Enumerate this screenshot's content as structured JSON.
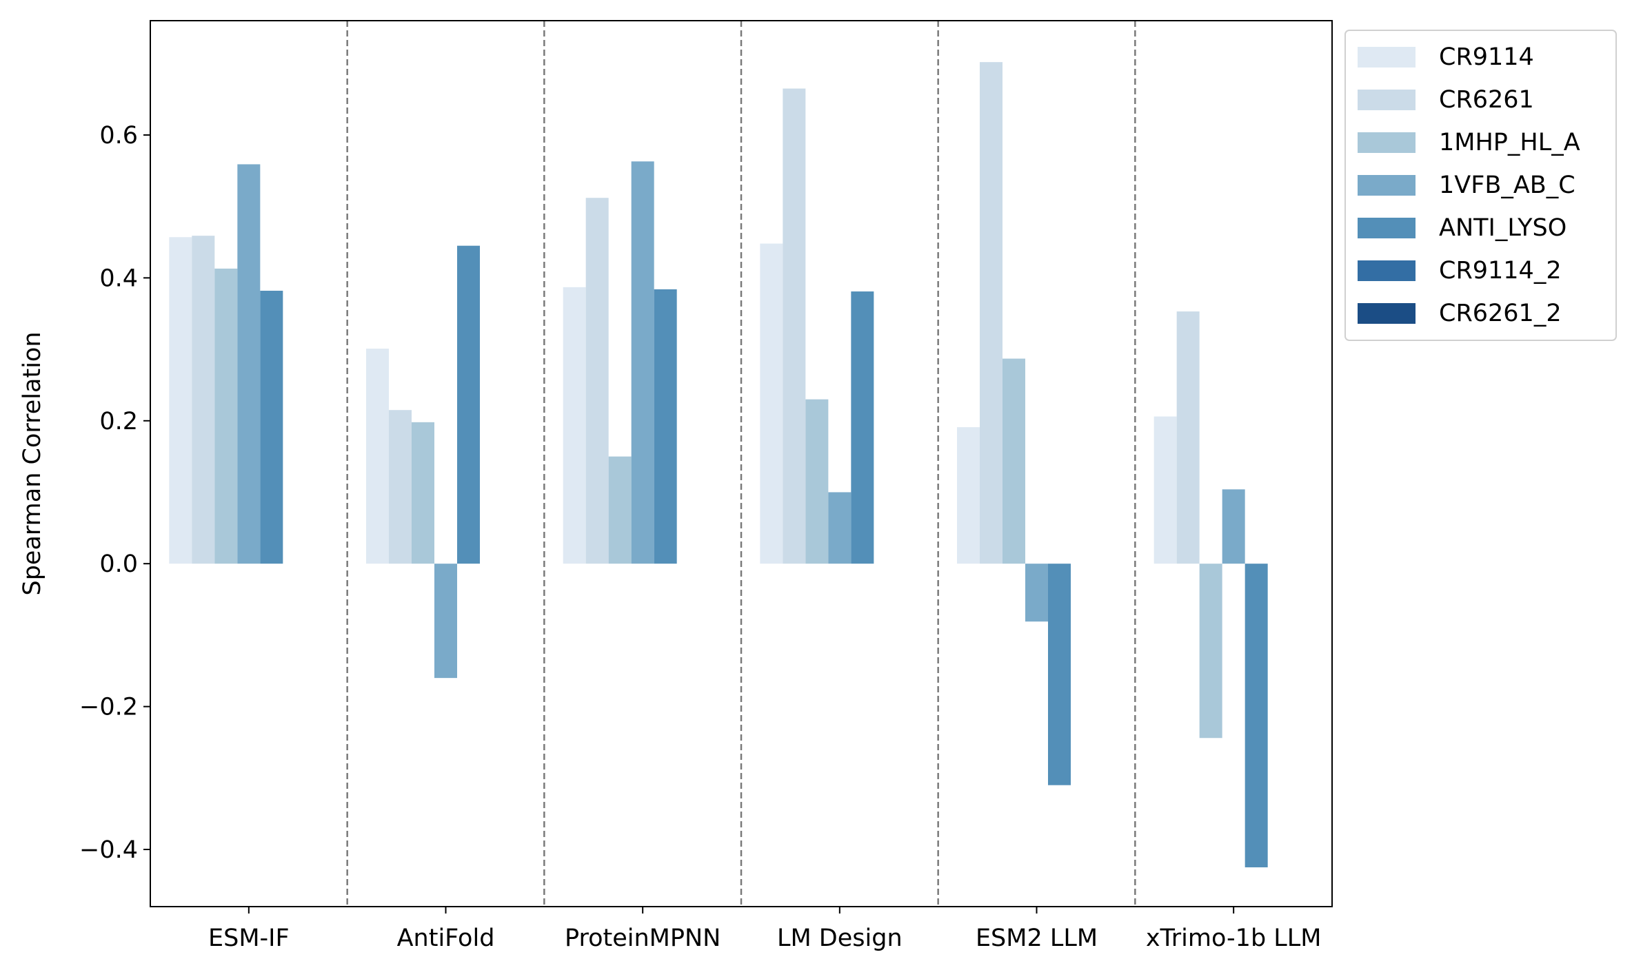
{
  "chart_data": {
    "type": "bar",
    "title": "",
    "xlabel": "",
    "ylabel": "Spearman Correlation",
    "ylim": [
      -0.48,
      0.76
    ],
    "yticks": [
      -0.4,
      -0.2,
      0.0,
      0.2,
      0.4,
      0.6
    ],
    "ytick_labels": [
      "−0.4",
      "−0.2",
      "0.0",
      "0.2",
      "0.4",
      "0.6"
    ],
    "grid": false,
    "group_separators": "dashed gray vertical lines between groups",
    "legend_position": "outside right, top",
    "categories": [
      "ESM-IF",
      "AntiFold",
      "ProteinMPNN",
      "LM Design",
      "ESM2 LLM",
      "xTrimo-1b LLM"
    ],
    "series": [
      {
        "name": "CR9114",
        "color": "#dfe9f3",
        "values": [
          0.457,
          0.301,
          0.387,
          0.448,
          0.191,
          0.206
        ]
      },
      {
        "name": "CR6261",
        "color": "#cbdbe8",
        "values": [
          0.459,
          0.215,
          0.512,
          0.665,
          0.702,
          0.353
        ]
      },
      {
        "name": "1MHP_HL_A",
        "color": "#a9c8d9",
        "values": [
          0.413,
          0.198,
          0.15,
          0.23,
          0.287,
          -0.244
        ]
      },
      {
        "name": "1VFB_AB_C",
        "color": "#7aaac9",
        "values": [
          0.559,
          -0.16,
          0.563,
          0.1,
          -0.081,
          0.104
        ]
      },
      {
        "name": "ANTI_LYSO",
        "color": "#538fb8",
        "values": [
          0.382,
          0.445,
          0.384,
          0.381,
          -0.31,
          -0.425
        ]
      },
      {
        "name": "CR9114_2",
        "color": "#336ea4",
        "values": [
          null,
          null,
          null,
          null,
          null,
          null
        ]
      },
      {
        "name": "CR6261_2",
        "color": "#1b4d85",
        "values": [
          null,
          null,
          null,
          null,
          null,
          null
        ]
      }
    ]
  }
}
